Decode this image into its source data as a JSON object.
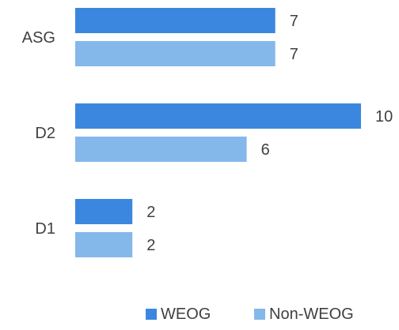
{
  "chart_data": {
    "type": "bar",
    "orientation": "horizontal",
    "categories": [
      "ASG",
      "D2",
      "D1"
    ],
    "series": [
      {
        "name": "WEOG",
        "values": [
          7,
          10,
          2
        ],
        "color": "#3b87df"
      },
      {
        "name": "Non-WEOG",
        "values": [
          7,
          6,
          2
        ],
        "color": "#85b8ea"
      }
    ],
    "xlim": [
      0,
      10
    ],
    "grid": false,
    "data_labels": true,
    "legend_position": "bottom-right"
  }
}
